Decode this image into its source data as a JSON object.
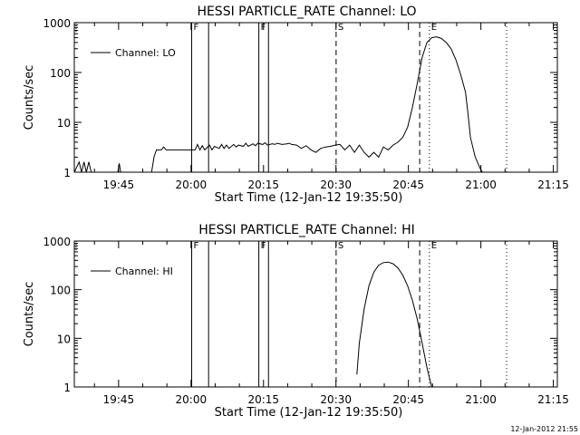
{
  "footer_timestamp": "12-Jan-2012 21:55",
  "chart_data": [
    {
      "type": "line",
      "title": "HESSI PARTICLE_RATE Channel: LO",
      "xlabel": "Start Time (12-Jan-12 19:35:50)",
      "ylabel": "Counts/sec",
      "yscale": "log",
      "ylim": [
        1,
        1000
      ],
      "xlim_minutes_after_start": [
        0,
        100
      ],
      "xtick_labels": [
        "19:45",
        "20:00",
        "20:15",
        "20:30",
        "20:45",
        "21:00",
        "21:15"
      ],
      "ytick_labels": [
        "1",
        "10",
        "100",
        "1000"
      ],
      "legend": "Channel: LO",
      "legend_position": "top-left",
      "markers": [
        {
          "label": "F",
          "style": "solid"
        },
        {
          "label": "F",
          "style": "solid"
        },
        {
          "label": "S",
          "style": "dashed"
        },
        {
          "label": "E",
          "style": "dotted"
        }
      ],
      "series": [
        {
          "name": "Channel: LO",
          "x": [
            0,
            1,
            1.5,
            2,
            2.5,
            3,
            3.5,
            9,
            9.3,
            9.6,
            16,
            16.5,
            17,
            18,
            18.5,
            19,
            25,
            25.5,
            26,
            26.5,
            27,
            28,
            28.5,
            29,
            30,
            30.5,
            31,
            31.5,
            32,
            33,
            33.5,
            34,
            35,
            35.5,
            36,
            37,
            37.5,
            38,
            39,
            39.5,
            40,
            41,
            41.5,
            42,
            43,
            44,
            44.5,
            45,
            46,
            47,
            48,
            49,
            50,
            51,
            52,
            53,
            54,
            55,
            56,
            57,
            58,
            59,
            60,
            61,
            62,
            63,
            64,
            65,
            66,
            67,
            68,
            69,
            70,
            71,
            72,
            73,
            74,
            75,
            76,
            77,
            78,
            79,
            80,
            81,
            81.5,
            82,
            83,
            84,
            84.5
          ],
          "y": [
            1,
            1.6,
            1,
            1.6,
            1,
            1.6,
            1,
            1,
            1.5,
            1,
            1,
            2,
            2.8,
            2.8,
            3.2,
            2.8,
            2.8,
            3.6,
            2.8,
            3.4,
            2.8,
            3.5,
            2.8,
            3.3,
            3,
            3.6,
            3,
            3.5,
            3,
            3.6,
            3.2,
            3.5,
            3.3,
            3.8,
            3.3,
            3.7,
            3.4,
            3.8,
            3.6,
            3.9,
            3.5,
            3.7,
            3.6,
            3.8,
            3.6,
            3.7,
            3.8,
            3.6,
            3.5,
            3,
            3.4,
            2.8,
            2.5,
            3,
            3.2,
            3.3,
            3.5,
            3.6,
            2.8,
            3.5,
            2.5,
            3.5,
            2.5,
            2,
            2.5,
            2,
            3.2,
            2.8,
            3.5,
            4,
            5,
            8,
            20,
            60,
            200,
            400,
            500,
            520,
            480,
            400,
            300,
            180,
            90,
            40,
            15,
            5,
            2,
            1.2,
            1
          ]
        }
      ]
    },
    {
      "type": "line",
      "title": "HESSI PARTICLE_RATE Channel: HI",
      "xlabel": "Start Time (12-Jan-12 19:35:50)",
      "ylabel": "Counts/sec",
      "yscale": "log",
      "ylim": [
        1,
        1000
      ],
      "xlim_minutes_after_start": [
        0,
        100
      ],
      "xtick_labels": [
        "19:45",
        "20:00",
        "20:15",
        "20:30",
        "20:45",
        "21:00",
        "21:15"
      ],
      "ytick_labels": [
        "1",
        "10",
        "100",
        "1000"
      ],
      "legend": "Channel: HI",
      "legend_position": "top-left",
      "markers": [
        {
          "label": "F",
          "style": "solid"
        },
        {
          "label": "F",
          "style": "solid"
        },
        {
          "label": "S",
          "style": "dashed"
        },
        {
          "label": "E",
          "style": "dotted"
        }
      ],
      "series": [
        {
          "name": "Channel: HI",
          "x": [
            58.5,
            59,
            60,
            61,
            62,
            63,
            64,
            65,
            66,
            67,
            68,
            69,
            70,
            71,
            72,
            73,
            74
          ],
          "y": [
            1.8,
            8,
            40,
            120,
            230,
            320,
            360,
            370,
            340,
            280,
            200,
            120,
            60,
            25,
            8,
            2.5,
            1
          ]
        }
      ]
    }
  ]
}
